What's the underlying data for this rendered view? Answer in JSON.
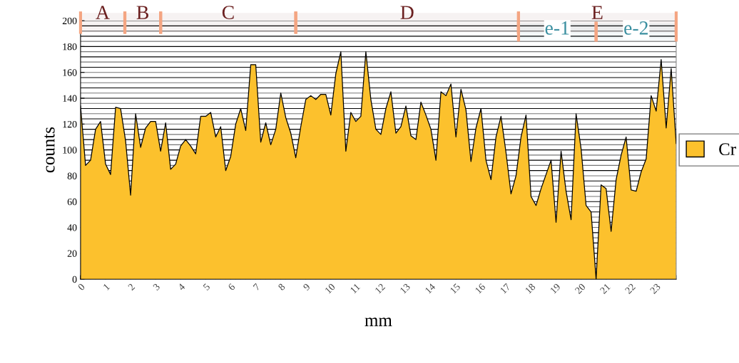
{
  "chart_data": {
    "type": "area",
    "xlabel": "mm",
    "ylabel": "counts",
    "x": [
      0,
      0.2,
      0.4,
      0.6,
      0.8,
      1,
      1.2,
      1.4,
      1.6,
      1.8,
      2,
      2.2,
      2.4,
      2.6,
      2.8,
      3,
      3.2,
      3.4,
      3.6,
      3.8,
      4,
      4.2,
      4.4,
      4.6,
      4.8,
      5,
      5.2,
      5.4,
      5.6,
      5.8,
      6,
      6.2,
      6.4,
      6.6,
      6.8,
      7,
      7.2,
      7.4,
      7.6,
      7.8,
      8,
      8.2,
      8.4,
      8.6,
      8.8,
      9,
      9.2,
      9.4,
      9.6,
      9.8,
      10,
      10.2,
      10.4,
      10.6,
      10.8,
      11,
      11.2,
      11.4,
      11.6,
      11.8,
      12,
      12.2,
      12.4,
      12.6,
      12.8,
      13,
      13.2,
      13.4,
      13.6,
      13.8,
      14,
      14.2,
      14.4,
      14.6,
      14.8,
      15,
      15.2,
      15.4,
      15.6,
      15.8,
      16,
      16.2,
      16.4,
      16.6,
      16.8,
      17,
      17.2,
      17.4,
      17.6,
      17.8,
      18,
      18.2,
      18.4,
      18.6,
      18.8,
      19,
      19.2,
      19.4,
      19.6,
      19.8,
      20,
      20.2,
      20.4,
      20.6,
      20.8,
      21,
      21.2,
      21.4,
      21.6,
      21.8,
      22,
      22.2,
      22.4,
      22.6,
      22.8,
      23,
      23.2,
      23.4,
      23.6,
      23.8
    ],
    "series": [
      {
        "name": "Cr",
        "color": "#fcc12d",
        "values": [
          134,
          88,
          92,
          116,
          122,
          89,
          81,
          133,
          132,
          107,
          65,
          128,
          102,
          117,
          122,
          122,
          99,
          121,
          85,
          89,
          103,
          108,
          103,
          97,
          126,
          126,
          129,
          110,
          118,
          84,
          95,
          120,
          132,
          115,
          166,
          166,
          106,
          121,
          104,
          116,
          144,
          125,
          113,
          94,
          118,
          139,
          142,
          139,
          143,
          143,
          127,
          159,
          176,
          99,
          129,
          122,
          126,
          176,
          139,
          116,
          112,
          132,
          145,
          113,
          118,
          134,
          111,
          108,
          137,
          127,
          116,
          92,
          145,
          142,
          151,
          110,
          147,
          131,
          91,
          117,
          132,
          92,
          77,
          110,
          126,
          98,
          66,
          80,
          110,
          127,
          64,
          57,
          70,
          81,
          92,
          44,
          99,
          68,
          46,
          128,
          101,
          57,
          52,
          0,
          73,
          70,
          37,
          77,
          96,
          110,
          69,
          68,
          83,
          93,
          142,
          130,
          170,
          117,
          163,
          105
        ]
      }
    ],
    "xlim": [
      0,
      23.8
    ],
    "xticks": [
      0,
      1,
      2,
      3,
      4,
      5,
      6,
      7,
      8,
      9,
      10,
      11,
      12,
      13,
      14,
      15,
      16,
      17,
      18,
      19,
      20,
      21,
      22,
      23
    ],
    "ylim": [
      0,
      200
    ],
    "yticks": [
      0,
      20,
      40,
      60,
      80,
      100,
      120,
      140,
      160,
      180,
      200
    ],
    "grid": "y",
    "legend": "right",
    "bands": [
      {
        "axis": "x",
        "from": 0,
        "to": 1.77,
        "label": "A",
        "color": "#6b2020"
      },
      {
        "axis": "x",
        "from": 1.77,
        "to": 3.2,
        "label": "B",
        "color": "#6b2020"
      },
      {
        "axis": "x",
        "from": 3.2,
        "to": 8.6,
        "label": "C",
        "color": "#6b2020"
      },
      {
        "axis": "x",
        "from": 8.6,
        "to": 17.5,
        "label": "D",
        "color": "#6b2020"
      },
      {
        "axis": "x",
        "from": 17.5,
        "to": 23.8,
        "label": "E",
        "color": "#6b2020"
      },
      {
        "axis": "x",
        "from": 17.5,
        "to": 20.6,
        "label": "e-1",
        "color": "#3a8fa0"
      },
      {
        "axis": "x",
        "from": 20.6,
        "to": 23.8,
        "label": "e-2",
        "color": "#3a8fa0"
      }
    ]
  }
}
